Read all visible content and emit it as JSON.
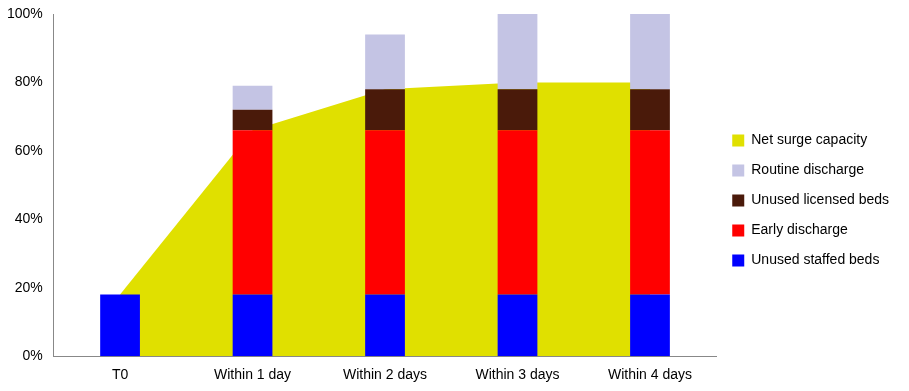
{
  "chart_data": {
    "type": "bar",
    "stacked": true,
    "categories": [
      "T0",
      "Within 1 day",
      "Within 2 days",
      "Within 3 days",
      "Within 4 days"
    ],
    "series": [
      {
        "name": "Net surge capacity",
        "type": "area",
        "color": "#e0e000",
        "values": [
          18,
          66,
          78,
          80,
          80
        ]
      },
      {
        "name": "Routine discharge",
        "type": "bar",
        "color": "#c4c4e4",
        "values": [
          null,
          7,
          16,
          22,
          22
        ]
      },
      {
        "name": "Unused licensed beds",
        "type": "bar",
        "color": "#4a1a0a",
        "values": [
          null,
          6,
          12,
          12,
          12
        ]
      },
      {
        "name": "Early discharge",
        "type": "bar",
        "color": "#ff0000",
        "values": [
          null,
          48,
          48,
          48,
          48
        ]
      },
      {
        "name": "Unused staffed beds",
        "type": "bar",
        "color": "#0000ff",
        "values": [
          18,
          18,
          18,
          18,
          18
        ]
      }
    ],
    "ylim": [
      0,
      100
    ],
    "yticks": [
      {
        "value": 0,
        "label": "0%"
      },
      {
        "value": 20,
        "label": "20%"
      },
      {
        "value": 40,
        "label": "40%"
      },
      {
        "value": 60,
        "label": "60%"
      },
      {
        "value": 80,
        "label": "80%"
      },
      {
        "value": 100,
        "label": "100%"
      }
    ],
    "grid": false,
    "legend": "right"
  }
}
